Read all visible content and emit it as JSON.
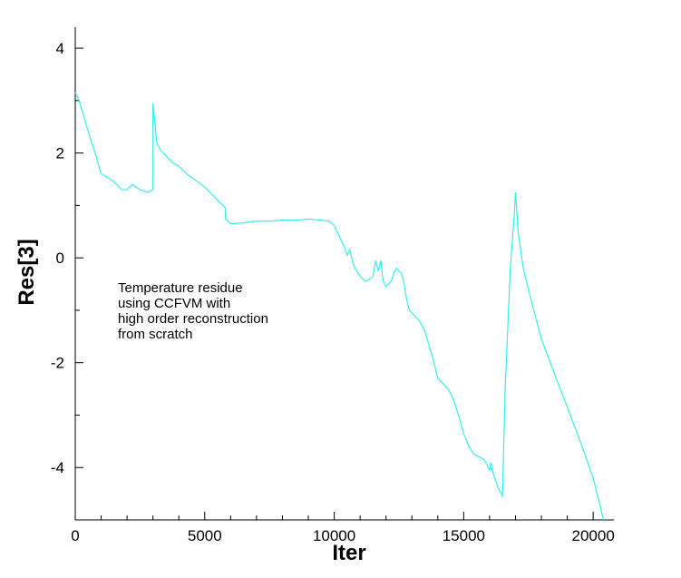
{
  "chart_data": {
    "type": "line",
    "xlabel": "Iter",
    "ylabel": "Res[3]",
    "xlim": [
      0,
      20800
    ],
    "ylim": [
      -5,
      4.4
    ],
    "x_ticks": [
      0,
      5000,
      10000,
      15000,
      20000
    ],
    "x_tick_labels": [
      "0",
      "5000",
      "10000",
      "15000",
      "20000"
    ],
    "y_ticks": [
      -4,
      -2,
      0,
      2,
      4
    ],
    "y_tick_labels": [
      "-4",
      "-2",
      "0",
      "2",
      "4"
    ],
    "grid": false,
    "line_color": "#33eeee",
    "annotation": [
      "Temperature residue",
      "using CCFVM with",
      "high order reconstruction",
      "from scratch"
    ],
    "series": [
      {
        "x": [
          0,
          150,
          300,
          450,
          600,
          800,
          1000,
          1200,
          1500,
          1800,
          2000,
          2200,
          2500,
          2800,
          3000,
          3000,
          3150,
          3300,
          3500,
          3800,
          4000,
          4300,
          4600,
          5000,
          5300,
          5600,
          5800,
          5800,
          6000,
          6500,
          7000,
          7500,
          8000,
          8500,
          9000,
          9500,
          9800,
          10000,
          10200,
          10400,
          10500,
          10600,
          10700,
          10800,
          11000,
          11200,
          11400,
          11500,
          11600,
          11700,
          11800,
          11850,
          11900,
          12000,
          12200,
          12300,
          12400,
          12500,
          12600,
          12700,
          12800,
          12900,
          13000,
          13300,
          13500,
          13800,
          14000,
          14200,
          14400,
          14600,
          14800,
          15000,
          15200,
          15400,
          15600,
          15800,
          16000,
          16050,
          16100,
          16300,
          16500,
          16600,
          16800,
          16950,
          17000,
          17050,
          17100,
          17300,
          17600,
          18000,
          18500,
          19000,
          19500,
          20000,
          20400
        ],
        "values": [
          3.15,
          3.0,
          2.75,
          2.5,
          2.25,
          1.95,
          1.6,
          1.55,
          1.45,
          1.3,
          1.3,
          1.4,
          1.3,
          1.25,
          1.3,
          2.95,
          2.2,
          2.05,
          1.95,
          1.8,
          1.75,
          1.6,
          1.5,
          1.35,
          1.2,
          1.05,
          0.95,
          0.75,
          0.65,
          0.67,
          0.7,
          0.7,
          0.72,
          0.72,
          0.74,
          0.72,
          0.7,
          0.62,
          0.4,
          0.2,
          0.05,
          0.15,
          -0.05,
          -0.2,
          -0.35,
          -0.45,
          -0.4,
          -0.35,
          -0.05,
          -0.25,
          -0.05,
          -0.3,
          -0.45,
          -0.55,
          -0.45,
          -0.3,
          -0.2,
          -0.25,
          -0.3,
          -0.5,
          -0.8,
          -1.0,
          -1.05,
          -1.2,
          -1.4,
          -1.9,
          -2.3,
          -2.4,
          -2.5,
          -2.7,
          -3.0,
          -3.35,
          -3.6,
          -3.75,
          -3.8,
          -3.85,
          -4.05,
          -3.9,
          -4.05,
          -4.35,
          -4.55,
          -2.5,
          -0.2,
          0.8,
          1.25,
          0.9,
          0.5,
          -0.2,
          -0.8,
          -1.55,
          -2.2,
          -2.85,
          -3.5,
          -4.2,
          -5.0
        ]
      }
    ]
  }
}
